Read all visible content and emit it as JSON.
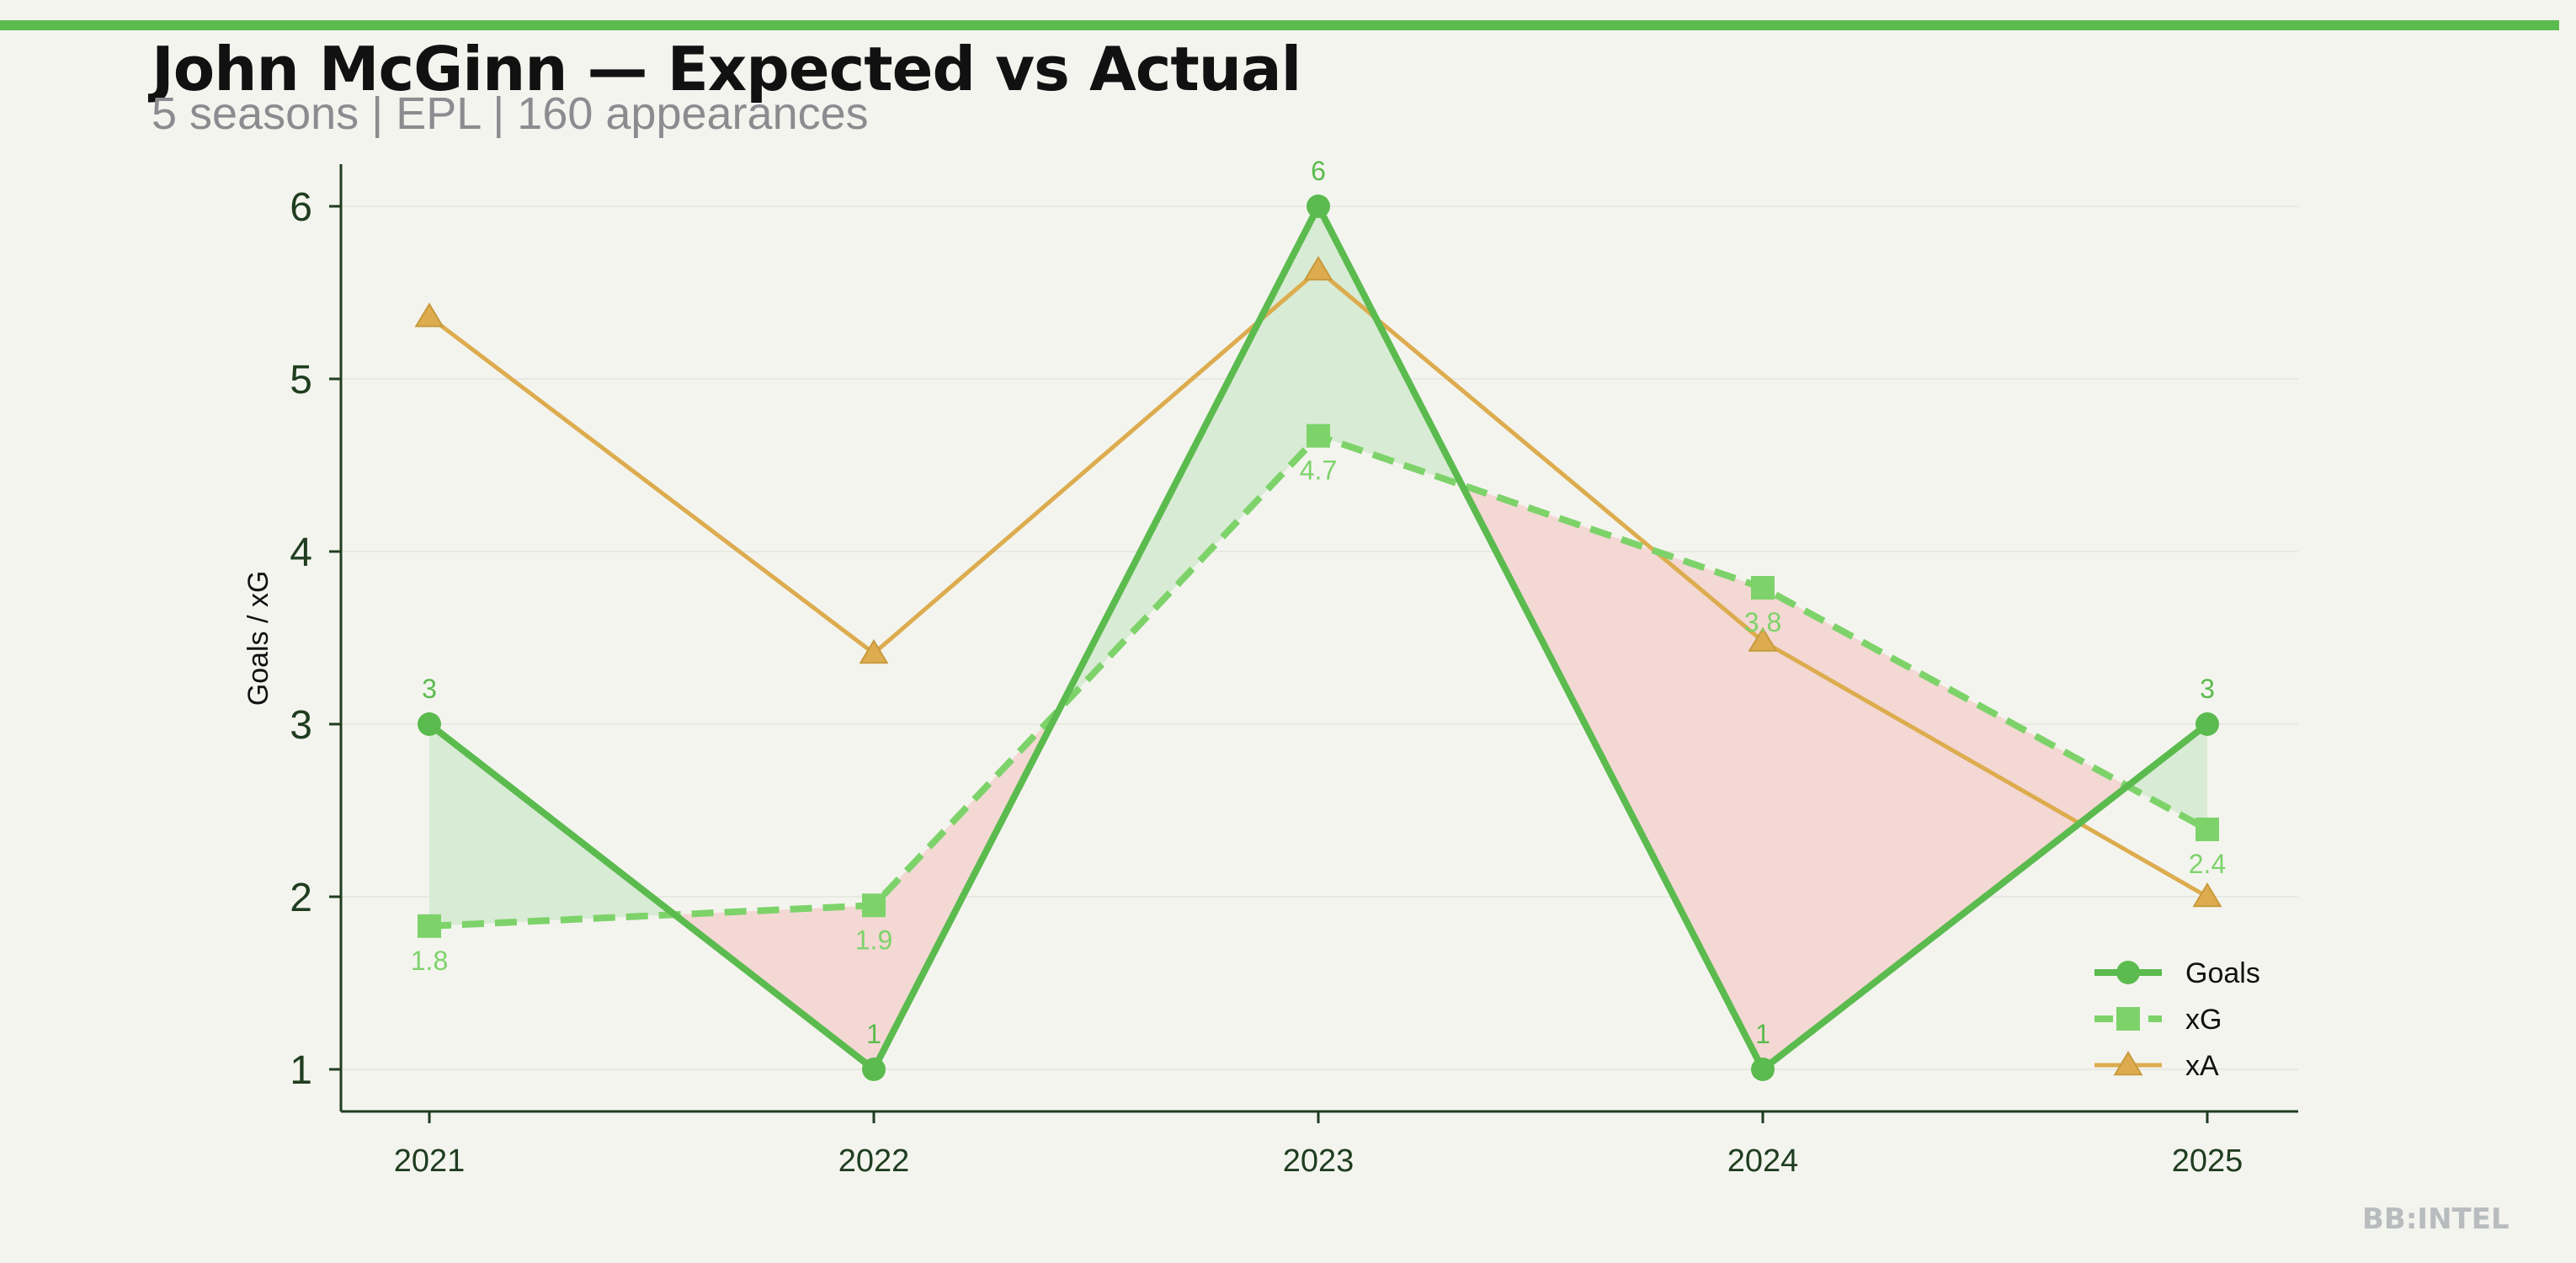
{
  "header": {
    "title": "John McGinn — Expected vs Actual",
    "subtitle": "5 seasons | EPL | 160 appearances"
  },
  "watermark": "BB:INTEL",
  "colors": {
    "goals": "#5bbb4e",
    "xg": "#7dd36a",
    "xa": "#dcac4e",
    "over_fill": "#d8ebd4",
    "under_fill": "#f4d8d4",
    "axis": "#1f3d1f",
    "background": "#f4f4ef"
  },
  "chart_data": {
    "type": "line",
    "x": [
      "2021",
      "2022",
      "2023",
      "2024",
      "2025"
    ],
    "ylabel": "Goals / xG",
    "ylim": [
      0.75,
      6.25
    ],
    "yticks": [
      1,
      2,
      3,
      4,
      5,
      6
    ],
    "grid": true,
    "legend_position": "lower-right",
    "series": [
      {
        "name": "Goals",
        "values": [
          3,
          1,
          6,
          1,
          3
        ],
        "labels": [
          "3",
          "1",
          "6",
          "1",
          "3"
        ],
        "marker": "circle",
        "style": "solid"
      },
      {
        "name": "xG",
        "values": [
          1.83,
          1.95,
          4.67,
          3.79,
          2.39
        ],
        "labels": [
          "1.8",
          "1.9",
          "4.7",
          "3.8",
          "2.4"
        ],
        "marker": "square",
        "style": "dashed"
      },
      {
        "name": "xA",
        "values": [
          5.36,
          3.41,
          5.63,
          3.48,
          2.0
        ],
        "marker": "triangle",
        "style": "solid"
      }
    ]
  }
}
